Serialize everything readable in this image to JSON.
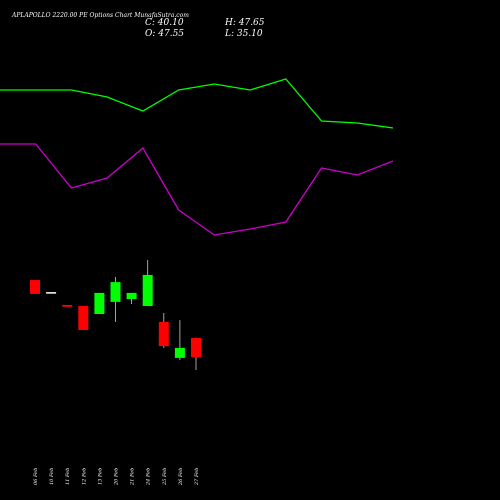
{
  "chart_data": [
    {
      "type": "line",
      "title": "APLAPOLLO 2220.00 PE Options Chart MunafaSutra.com",
      "stats": [
        "C: 40.10",
        "H: 47.65",
        "O: 47.55",
        "L: 35.10"
      ],
      "ylim": [
        0,
        500
      ],
      "series": [
        {
          "color": "#00ff00",
          "values": [
            410,
            410,
            410,
            403,
            389,
            410,
            416,
            410,
            421,
            379,
            377,
            372
          ]
        },
        {
          "color": "#cc00cc",
          "values": [
            356,
            356,
            312,
            322,
            352,
            290,
            265,
            271,
            278,
            332,
            325,
            339
          ]
        }
      ]
    },
    {
      "type": "candlestick",
      "categories": [
        "06 Feb",
        "10 Feb",
        "11 Feb",
        "12 Feb",
        "13 Feb",
        "20 Feb",
        "21 Feb",
        "24 Feb",
        "25 Feb",
        "26 Feb",
        "27 Feb"
      ],
      "open": [
        70.1,
        65.4,
        60.4,
        60.0,
        56.9,
        61.6,
        62.7,
        60.0,
        53.8,
        39.8,
        47.55
      ],
      "high": [
        70.1,
        65.4,
        60.4,
        60.0,
        65.1,
        71.3,
        65.1,
        77.9,
        57.3,
        54.5,
        47.65
      ],
      "low": [
        64.7,
        65.0,
        59.7,
        50.7,
        56.9,
        53.8,
        60.8,
        60.0,
        43.7,
        39.0,
        35.1
      ],
      "close": [
        64.7,
        65.0,
        59.7,
        50.7,
        65.1,
        69.3,
        65.1,
        72.1,
        44.4,
        43.7,
        40.1
      ],
      "up_color": "#00ff00",
      "down_color": "#ff0000",
      "ylim": [
        -15.5,
        179.1
      ]
    }
  ]
}
